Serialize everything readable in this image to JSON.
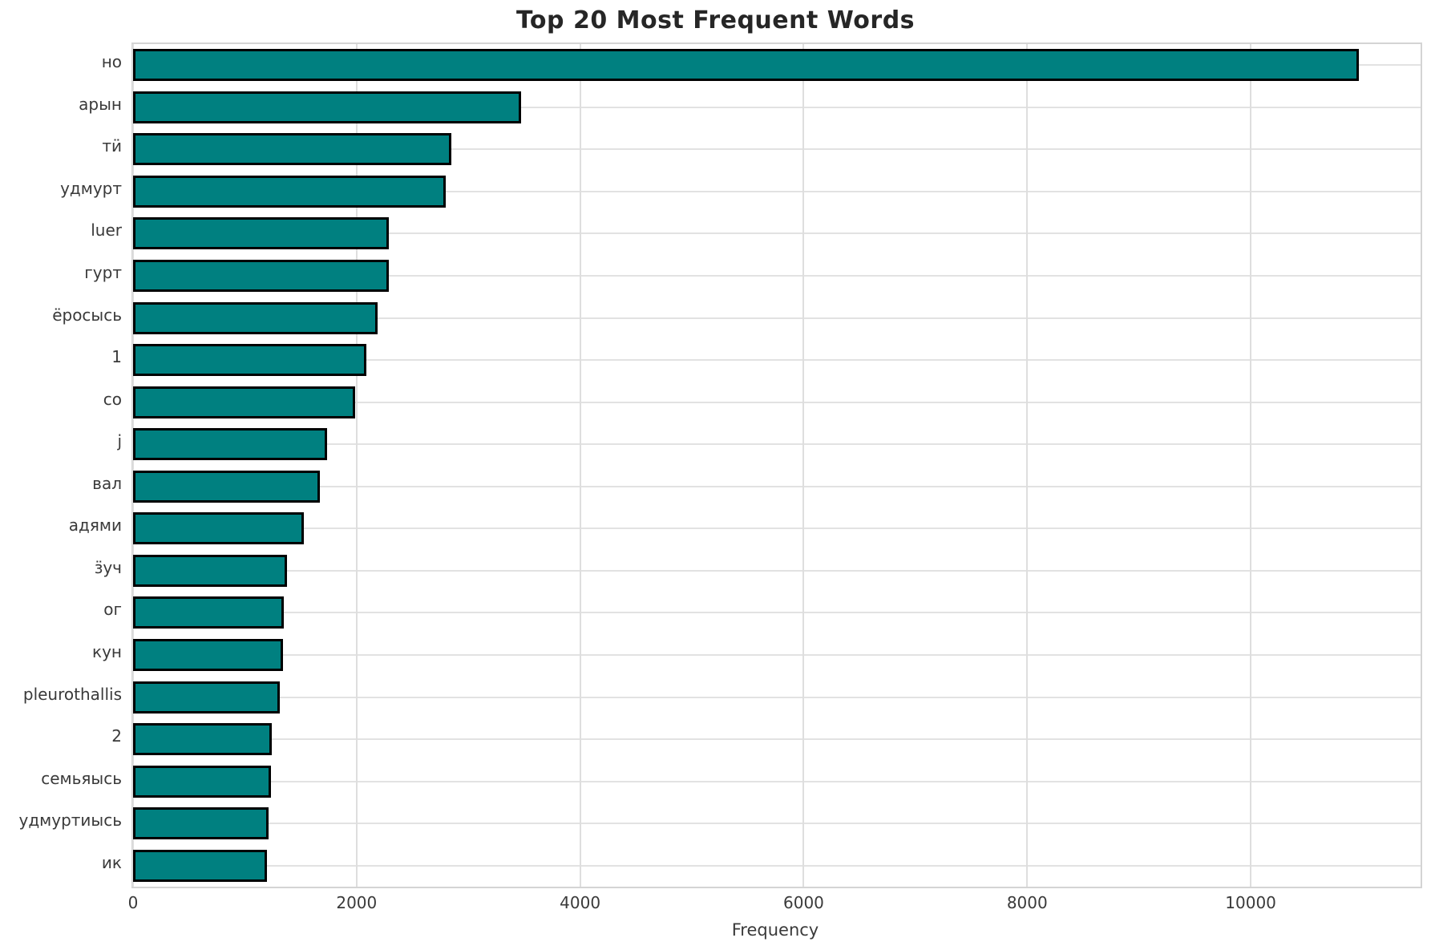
{
  "title": "Top 20 Most Frequent Words",
  "chart_data": {
    "type": "bar",
    "orientation": "horizontal",
    "title": "Top 20 Most Frequent Words",
    "xlabel": "Frequency",
    "ylabel": "",
    "categories": [
      "но",
      "арын",
      "тӥ",
      "удмурт",
      "luer",
      "гурт",
      "ёросысь",
      "1",
      "со",
      "j",
      "вал",
      "адями",
      "ӟуч",
      "ог",
      "кун",
      "pleurothallis",
      "2",
      "семьяысь",
      "удмуртиысь",
      "ик"
    ],
    "values": [
      10970,
      3470,
      2845,
      2800,
      2290,
      2290,
      2190,
      2090,
      1990,
      1735,
      1670,
      1525,
      1375,
      1350,
      1340,
      1315,
      1240,
      1235,
      1215,
      1200
    ],
    "xticks": [
      0,
      2000,
      4000,
      6000,
      8000,
      10000
    ],
    "xlim": [
      0,
      11520
    ],
    "grid": true,
    "legend": "none",
    "bar_color": "#008080",
    "bar_edge_color": "#000000",
    "grid_color": "#dedede",
    "axis_border_color": "#d4d4d4",
    "title_color": "#262626",
    "tick_label_color": "#3a3a3a",
    "background_color": "#ffffff"
  }
}
